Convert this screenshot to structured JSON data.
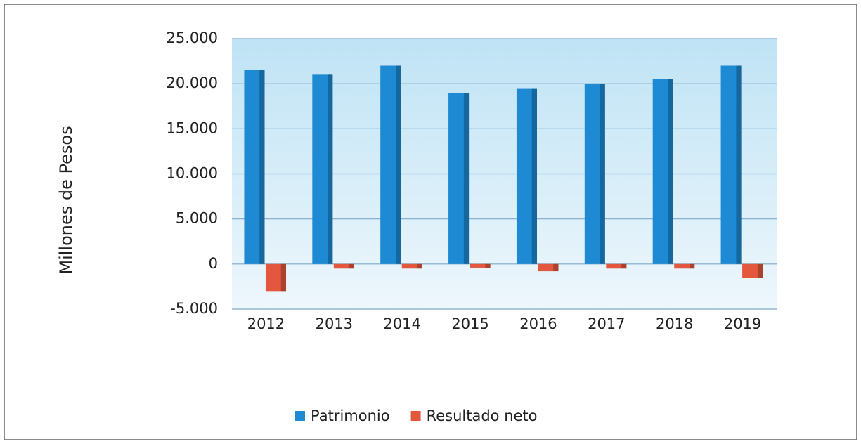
{
  "chart_data": {
    "type": "bar",
    "y_label": "Millones de Pesos",
    "categories": [
      "2012",
      "2013",
      "2014",
      "2015",
      "2016",
      "2017",
      "2018",
      "2019"
    ],
    "series": [
      {
        "name": "Patrimonio",
        "color": "#1f8ad4",
        "values": [
          21500,
          21000,
          22000,
          19000,
          19500,
          20000,
          20500,
          22000
        ]
      },
      {
        "name": "Resultado neto",
        "color": "#e4573f",
        "values": [
          -3000,
          -500,
          -500,
          -400,
          -800,
          -500,
          -500,
          -1500
        ]
      }
    ],
    "ylim": [
      -5000,
      25000
    ],
    "yticks": [
      {
        "value": -5000,
        "label": "-5.000"
      },
      0,
      {
        "value": 5000,
        "label": "5.000"
      },
      {
        "value": 10000,
        "label": "10.000"
      },
      {
        "value": 15000,
        "label": "15.000"
      },
      {
        "value": 20000,
        "label": "20.000"
      },
      {
        "value": 25000,
        "label": "25.000"
      }
    ],
    "grid": true,
    "legend": "bottom"
  }
}
